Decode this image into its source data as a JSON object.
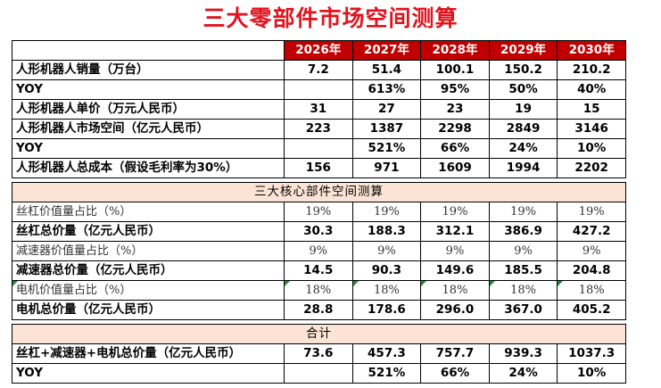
{
  "title": "三大零部件市场空间测算",
  "years": [
    "2026年",
    "2027年",
    "2028年",
    "2029年",
    "2030年"
  ],
  "block1": [
    {
      "label": "人形机器人销量（万台）",
      "values": [
        "7.2",
        "51.4",
        "100.1",
        "150.2",
        "210.2"
      ]
    },
    {
      "label": "YOY",
      "values": [
        "",
        "613%",
        "95%",
        "50%",
        "40%"
      ]
    },
    {
      "label": "人形机器人单价（万元人民币）",
      "values": [
        "31",
        "27",
        "23",
        "19",
        "15"
      ]
    },
    {
      "label": "人形机器人市场空间（亿元人民币）",
      "values": [
        "223",
        "1387",
        "2298",
        "2849",
        "3146"
      ]
    },
    {
      "label": "YOY",
      "values": [
        "",
        "521%",
        "66%",
        "24%",
        "10%"
      ]
    },
    {
      "label": "人形机器人总成本（假设毛利率为30%）",
      "values": [
        "156",
        "971",
        "1609",
        "1994",
        "2202"
      ]
    }
  ],
  "section_core": "三大核心部件空间测算",
  "block2": [
    {
      "label": "丝杠价值量占比（%）",
      "values": [
        "19%",
        "19%",
        "19%",
        "19%",
        "19%"
      ]
    },
    {
      "label": "丝杠总价量（亿元人民币）",
      "values": [
        "30.3",
        "188.3",
        "312.1",
        "386.9",
        "427.2"
      ]
    },
    {
      "label": "减速器价值量占比（%）",
      "values": [
        "9%",
        "9%",
        "9%",
        "9%",
        "9%"
      ]
    },
    {
      "label": "减速器总价量（亿元人民币）",
      "values": [
        "14.5",
        "90.3",
        "149.6",
        "185.5",
        "204.8"
      ]
    },
    {
      "label": "电机价值量占比（%）",
      "values": [
        "18%",
        "18%",
        "18%",
        "18%",
        "18%"
      ]
    },
    {
      "label": "电机总价量（亿元人民币）",
      "values": [
        "28.8",
        "178.6",
        "296.0",
        "367.0",
        "405.2"
      ]
    }
  ],
  "section_total": "合计",
  "block3": [
    {
      "label": "丝杠+减速器+电机总价量（亿元人民币）",
      "values": [
        "73.6",
        "457.3",
        "757.7",
        "939.3",
        "1037.3"
      ]
    },
    {
      "label": "YOY",
      "values": [
        "",
        "521%",
        "66%",
        "24%",
        "10%"
      ]
    }
  ],
  "colors": {
    "title": "#e0141e",
    "header_bg": "#c00000",
    "section_bg": "#fbe4d5",
    "cell_marker": "#1f8b3b"
  }
}
